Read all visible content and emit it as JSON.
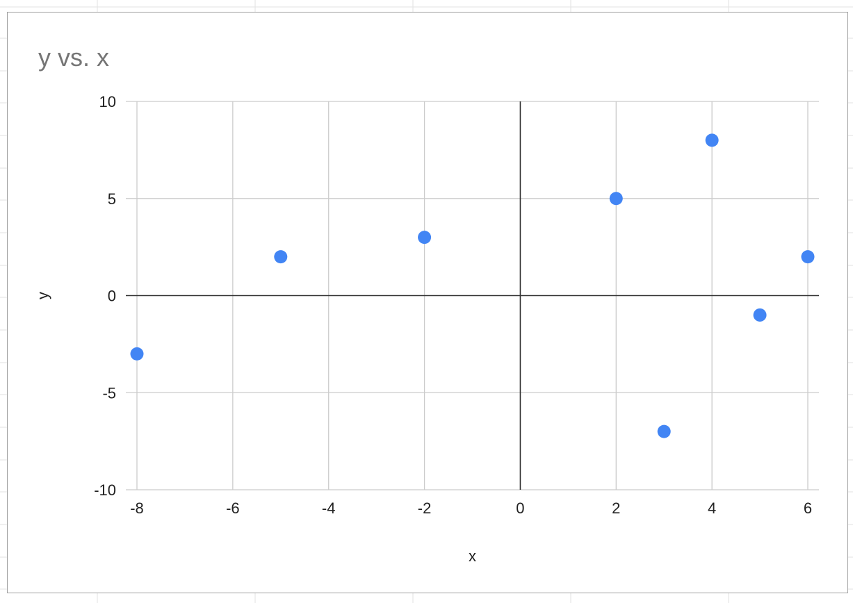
{
  "colors": {
    "point": "#4285f4",
    "gridline": "#cccccc",
    "zero_axis": "#333333",
    "title": "#757575",
    "sheet_grid": "#e2e2e2"
  },
  "chart_data": {
    "type": "scatter",
    "title": "y vs. x",
    "xlabel": "x",
    "ylabel": "y",
    "xlim": [
      -8,
      6
    ],
    "ylim": [
      -10,
      10
    ],
    "x_ticks": [
      -8,
      -6,
      -4,
      -2,
      0,
      2,
      4,
      6
    ],
    "y_ticks": [
      -10,
      -5,
      0,
      5,
      10
    ],
    "x_tick_labels": [
      "-8",
      "-6",
      "-4",
      "-2",
      "0",
      "2",
      "4",
      "6"
    ],
    "y_tick_labels": [
      "-10",
      "-5",
      "0",
      "5",
      "10"
    ],
    "grid": true,
    "legend": "none",
    "series": [
      {
        "points": [
          {
            "x": -8,
            "y": -3
          },
          {
            "x": -5,
            "y": 2
          },
          {
            "x": -2,
            "y": 3
          },
          {
            "x": 2,
            "y": 5
          },
          {
            "x": 3,
            "y": -7
          },
          {
            "x": 4,
            "y": 8
          },
          {
            "x": 5,
            "y": -1
          },
          {
            "x": 6,
            "y": 2
          }
        ]
      }
    ]
  }
}
